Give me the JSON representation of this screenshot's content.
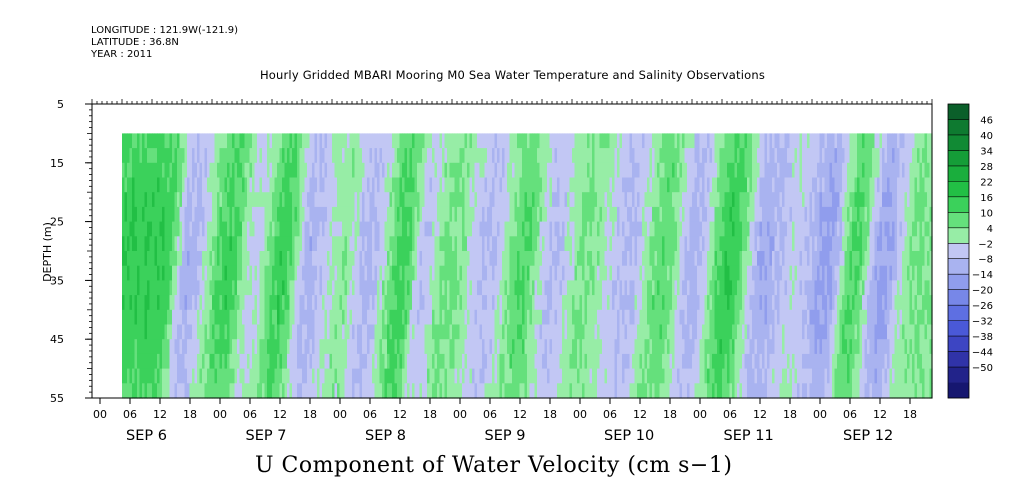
{
  "meta": {
    "longitude": "LONGITUDE : 121.9W(-121.9)",
    "latitude": "LATITUDE : 36.8N",
    "year": "YEAR : 2011"
  },
  "chart_data": {
    "type": "heatmap",
    "title": "Hourly Gridded MBARI Mooring M0 Sea Water Temperature and Salinity Observations",
    "variable_label": "U Component of Water Velocity (cm s−1)",
    "ylabel": "DEPTH (m)",
    "y_ticks": [
      5,
      15,
      25,
      35,
      45,
      55
    ],
    "ylim": [
      5,
      55
    ],
    "y_reversed": true,
    "x_hour_ticks": [
      "00",
      "06",
      "12",
      "18",
      "00",
      "06",
      "12",
      "18",
      "00",
      "06",
      "12",
      "18",
      "00",
      "06",
      "12",
      "18",
      "00",
      "06",
      "12",
      "18",
      "00",
      "06",
      "12",
      "18",
      "00",
      "06",
      "12",
      "18"
    ],
    "x_day_labels": [
      "SEP  6",
      "SEP  7",
      "SEP  8",
      "SEP  9",
      "SEP 10",
      "SEP 11",
      "SEP 12"
    ],
    "data_extent": {
      "time_start": "2011-09-06 06:00",
      "time_end": "2011-09-12 23:00",
      "depth_top": 10,
      "depth_bottom": 55
    },
    "colorbar": {
      "levels": [
        46,
        40,
        34,
        28,
        22,
        16,
        10,
        4,
        -2,
        -8,
        -14,
        -20,
        -26,
        -32,
        -38,
        -44,
        -50
      ],
      "colors": [
        "#0b5f2a",
        "#0e7a30",
        "#118a34",
        "#159d38",
        "#1aae3d",
        "#22bf45",
        "#3bd15b",
        "#65e07c",
        "#97eda6",
        "#c2c7f4",
        "#a9b3f0",
        "#909ded",
        "#7787e8",
        "#5e6fe2",
        "#4a59d8",
        "#3d45c3",
        "#3033a8",
        "#22238a",
        "#161770"
      ],
      "range": [
        -50,
        50
      ]
    },
    "current_bands": [
      {
        "time": "2011-09-06 14:00",
        "u": 14
      },
      {
        "time": "2011-09-06 19:00",
        "u": -10
      },
      {
        "time": "2011-09-07 03:00",
        "u": 12
      },
      {
        "time": "2011-09-07 08:00",
        "u": -4
      },
      {
        "time": "2011-09-07 14:00",
        "u": 13
      },
      {
        "time": "2011-09-07 19:00",
        "u": -10
      },
      {
        "time": "2011-09-08 02:00",
        "u": 2
      },
      {
        "time": "2011-09-08 07:00",
        "u": -9
      },
      {
        "time": "2011-09-08 14:00",
        "u": 12
      },
      {
        "time": "2011-09-08 18:00",
        "u": -6
      },
      {
        "time": "2011-09-08 23:00",
        "u": 6
      },
      {
        "time": "2011-09-09 07:00",
        "u": -8
      },
      {
        "time": "2011-09-09 14:00",
        "u": 9
      },
      {
        "time": "2011-09-09 20:00",
        "u": -8
      },
      {
        "time": "2011-09-10 02:00",
        "u": 4
      },
      {
        "time": "2011-09-10 11:00",
        "u": -8
      },
      {
        "time": "2011-09-10 18:00",
        "u": 8
      },
      {
        "time": "2011-09-11 00:00",
        "u": -10
      },
      {
        "time": "2011-09-11 07:00",
        "u": 14
      },
      {
        "time": "2011-09-11 14:00",
        "u": -12
      },
      {
        "time": "2011-09-11 20:00",
        "u": -4
      },
      {
        "time": "2011-09-12 03:00",
        "u": -14
      },
      {
        "time": "2011-09-12 08:00",
        "u": 10
      },
      {
        "time": "2011-09-12 14:00",
        "u": -14
      },
      {
        "time": "2011-09-12 20:00",
        "u": 4
      }
    ]
  }
}
